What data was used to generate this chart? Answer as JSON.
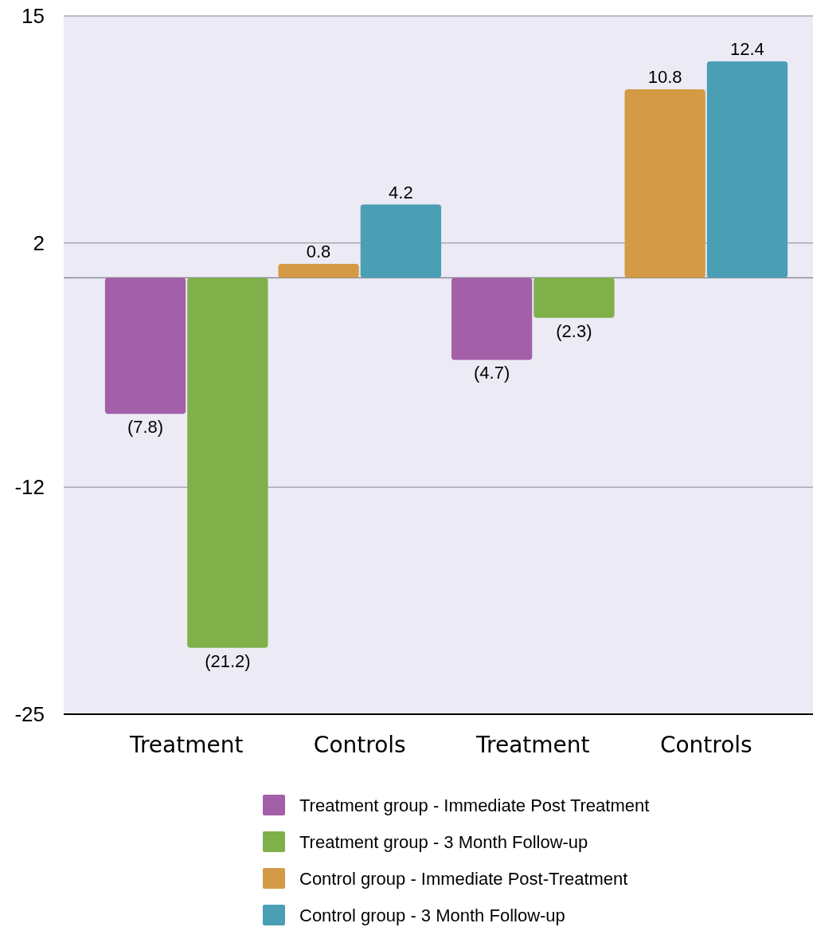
{
  "chart_data": {
    "type": "bar",
    "categories": [
      "Treatment",
      "Controls",
      "Treatment",
      "Controls"
    ],
    "series": [
      {
        "name": "Treatment group - Immediate Post Treatment",
        "color": "#a35fa8",
        "values": [
          -7.8,
          null,
          -4.7,
          null
        ],
        "value_labels": [
          "(7.8)",
          null,
          "(4.7)",
          null
        ]
      },
      {
        "name": "Treatment group - 3 Month Follow-up",
        "color": "#7fb04a",
        "values": [
          -21.2,
          null,
          -2.3,
          null
        ],
        "value_labels": [
          "(21.2)",
          null,
          "(2.3)",
          null
        ]
      },
      {
        "name": "Control group - Immediate Post-Treatment",
        "color": "#d49a45",
        "values": [
          null,
          0.8,
          null,
          10.8
        ],
        "value_labels": [
          null,
          "0.8",
          null,
          "10.8"
        ]
      },
      {
        "name": "Control group - 3 Month Follow-up",
        "color": "#4a9fb5",
        "values": [
          null,
          4.2,
          null,
          12.4
        ],
        "value_labels": [
          null,
          "4.2",
          null,
          "12.4"
        ]
      }
    ],
    "ylim": [
      -25,
      15
    ],
    "yticks": [
      15,
      2,
      -12,
      -25
    ],
    "grid": "y",
    "legend": "bottom"
  }
}
